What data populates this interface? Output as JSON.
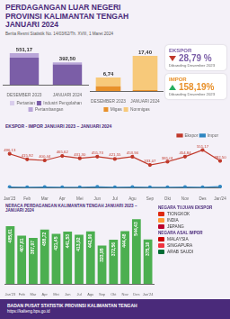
{
  "header": {
    "title_lines": [
      "PERDAGANGAN LUAR NEGERI",
      "PROVINSI KALIMANTAN TENGAH",
      "JANUARI 2024"
    ],
    "subtitle": "Berita Resmi Statistik No. 14/03/62/Th. XVIII, 1 Maret 2024"
  },
  "summary": [
    {
      "label": "EKSPOR",
      "value_label": "28,79 %",
      "note": "Dibanding Desember 2023",
      "direction": "down",
      "color": "#7b5ea7"
    },
    {
      "label": "IMPOR",
      "value_label": "158,19%",
      "note": "Dibanding Desember 2023",
      "direction": "up",
      "color": "#e8902a"
    }
  ],
  "chart_data": [
    {
      "type": "bar",
      "stacked": true,
      "categories": [
        "DESEMBER 2023",
        "JANUARI 2024"
      ],
      "series": [
        {
          "name": "Pertanian",
          "color": "#d9cdec",
          "values": [
            0.17,
            0.17
          ]
        },
        {
          "name": "Industri Pengolahan",
          "color": "#7b5ea7",
          "values": [
            473.26,
            355.39
          ]
        },
        {
          "name": "Pertambangan",
          "color": "#b9a5d8",
          "values": [
            77.74,
            36.94
          ]
        }
      ],
      "totals": [
        551.17,
        392.5
      ],
      "total_labels": [
        "551,17",
        "392,50"
      ],
      "ylim": [
        0,
        600
      ],
      "grid": false,
      "tick_labels": "x",
      "legend": "bottom"
    },
    {
      "type": "bar",
      "stacked": true,
      "categories": [
        "DESEMBER 2023",
        "JANUARI 2024"
      ],
      "series": [
        {
          "name": "Migas",
          "color": "#e8902a",
          "values": [
            2.47,
            0.5
          ]
        },
        {
          "name": "Nonmigas",
          "color": "#f7c97a",
          "values": [
            4.27,
            16.9
          ]
        }
      ],
      "totals": [
        6.74,
        17.4
      ],
      "total_labels": [
        "6,74",
        "17,40"
      ],
      "ylim": [
        0,
        20
      ],
      "grid": false,
      "tick_labels": "x",
      "legend": "bottom"
    },
    {
      "type": "line",
      "title": "EKSPOR - IMPOR JANUARI 2023 – JANUARI 2024",
      "categories": [
        "Jan'23",
        "Feb",
        "Mar",
        "Apr",
        "Mei",
        "Jun",
        "Jul",
        "Agu",
        "Sep",
        "Okt",
        "Nov",
        "Des",
        "Jan'24"
      ],
      "series": [
        {
          "name": "Ekspor",
          "color": "#c0392b",
          "marker": "circle",
          "data_labels": true,
          "values": [
            496.13,
            415.92,
            400.44,
            465.62,
            431.3,
            455.73,
            421.55,
            453.94,
            333.07,
            381.01,
            454.84,
            551.17,
            392.5
          ],
          "value_labels": [
            "496,13",
            "415,92",
            "400,44",
            "465,62",
            "431,30",
            "455,73",
            "421,55",
            "453,94",
            "333,07",
            "381,01",
            "454,84",
            "551,17",
            "392,50"
          ]
        },
        {
          "name": "Impor",
          "color": "#2e86c1",
          "marker": "circle",
          "values": [
            10.52,
            8.31,
            12.47,
            6.9,
            9.85,
            14.2,
            7.63,
            11.04,
            9.12,
            8.45,
            10.36,
            6.74,
            17.4
          ]
        }
      ],
      "ylim": [
        0,
        600
      ],
      "grid": false,
      "tick_labels": "x",
      "legend": "top"
    },
    {
      "type": "bar",
      "title": "NERACA PERDAGANGAN KALIMANTAN TENGAH JANUARI 2023 – JANUARI 2024",
      "categories": [
        "Jan'23",
        "Feb",
        "Mar",
        "Apr",
        "Mei",
        "Jun",
        "Jul",
        "Agu",
        "Sep",
        "Okt",
        "Nov",
        "Des",
        "Jan'24"
      ],
      "values": [
        485.61,
        407.61,
        387.97,
        458.72,
        421.45,
        441.53,
        413.92,
        442.9,
        323.95,
        372.56,
        444.48,
        544.43,
        375.1
      ],
      "value_labels": [
        "485,61",
        "407,61",
        "387,97",
        "458,72",
        "421,45",
        "441,53",
        "413,92",
        "442,90",
        "323,95",
        "372,56",
        "444,48",
        "544,43",
        "375,10"
      ],
      "color": "#4caf50",
      "data_labels": true,
      "ylim": [
        0,
        600
      ],
      "grid": false,
      "tick_labels": "x"
    }
  ],
  "countries": {
    "export_title": "NEGARA TUJUAN EKSPOR",
    "export": [
      "TIONGKOK",
      "INDIA",
      "JEPANG"
    ],
    "import_title": "NEGARA ASAL IMPOR",
    "import": [
      "MALAYSIA",
      "SINGAPURA",
      "ARAB SAUDI"
    ]
  },
  "footer": {
    "org": "BADAN PUSAT STATISTIK PROVINSI KALIMANTAN TENGAH",
    "url": "https://kalteng.bps.go.id"
  }
}
